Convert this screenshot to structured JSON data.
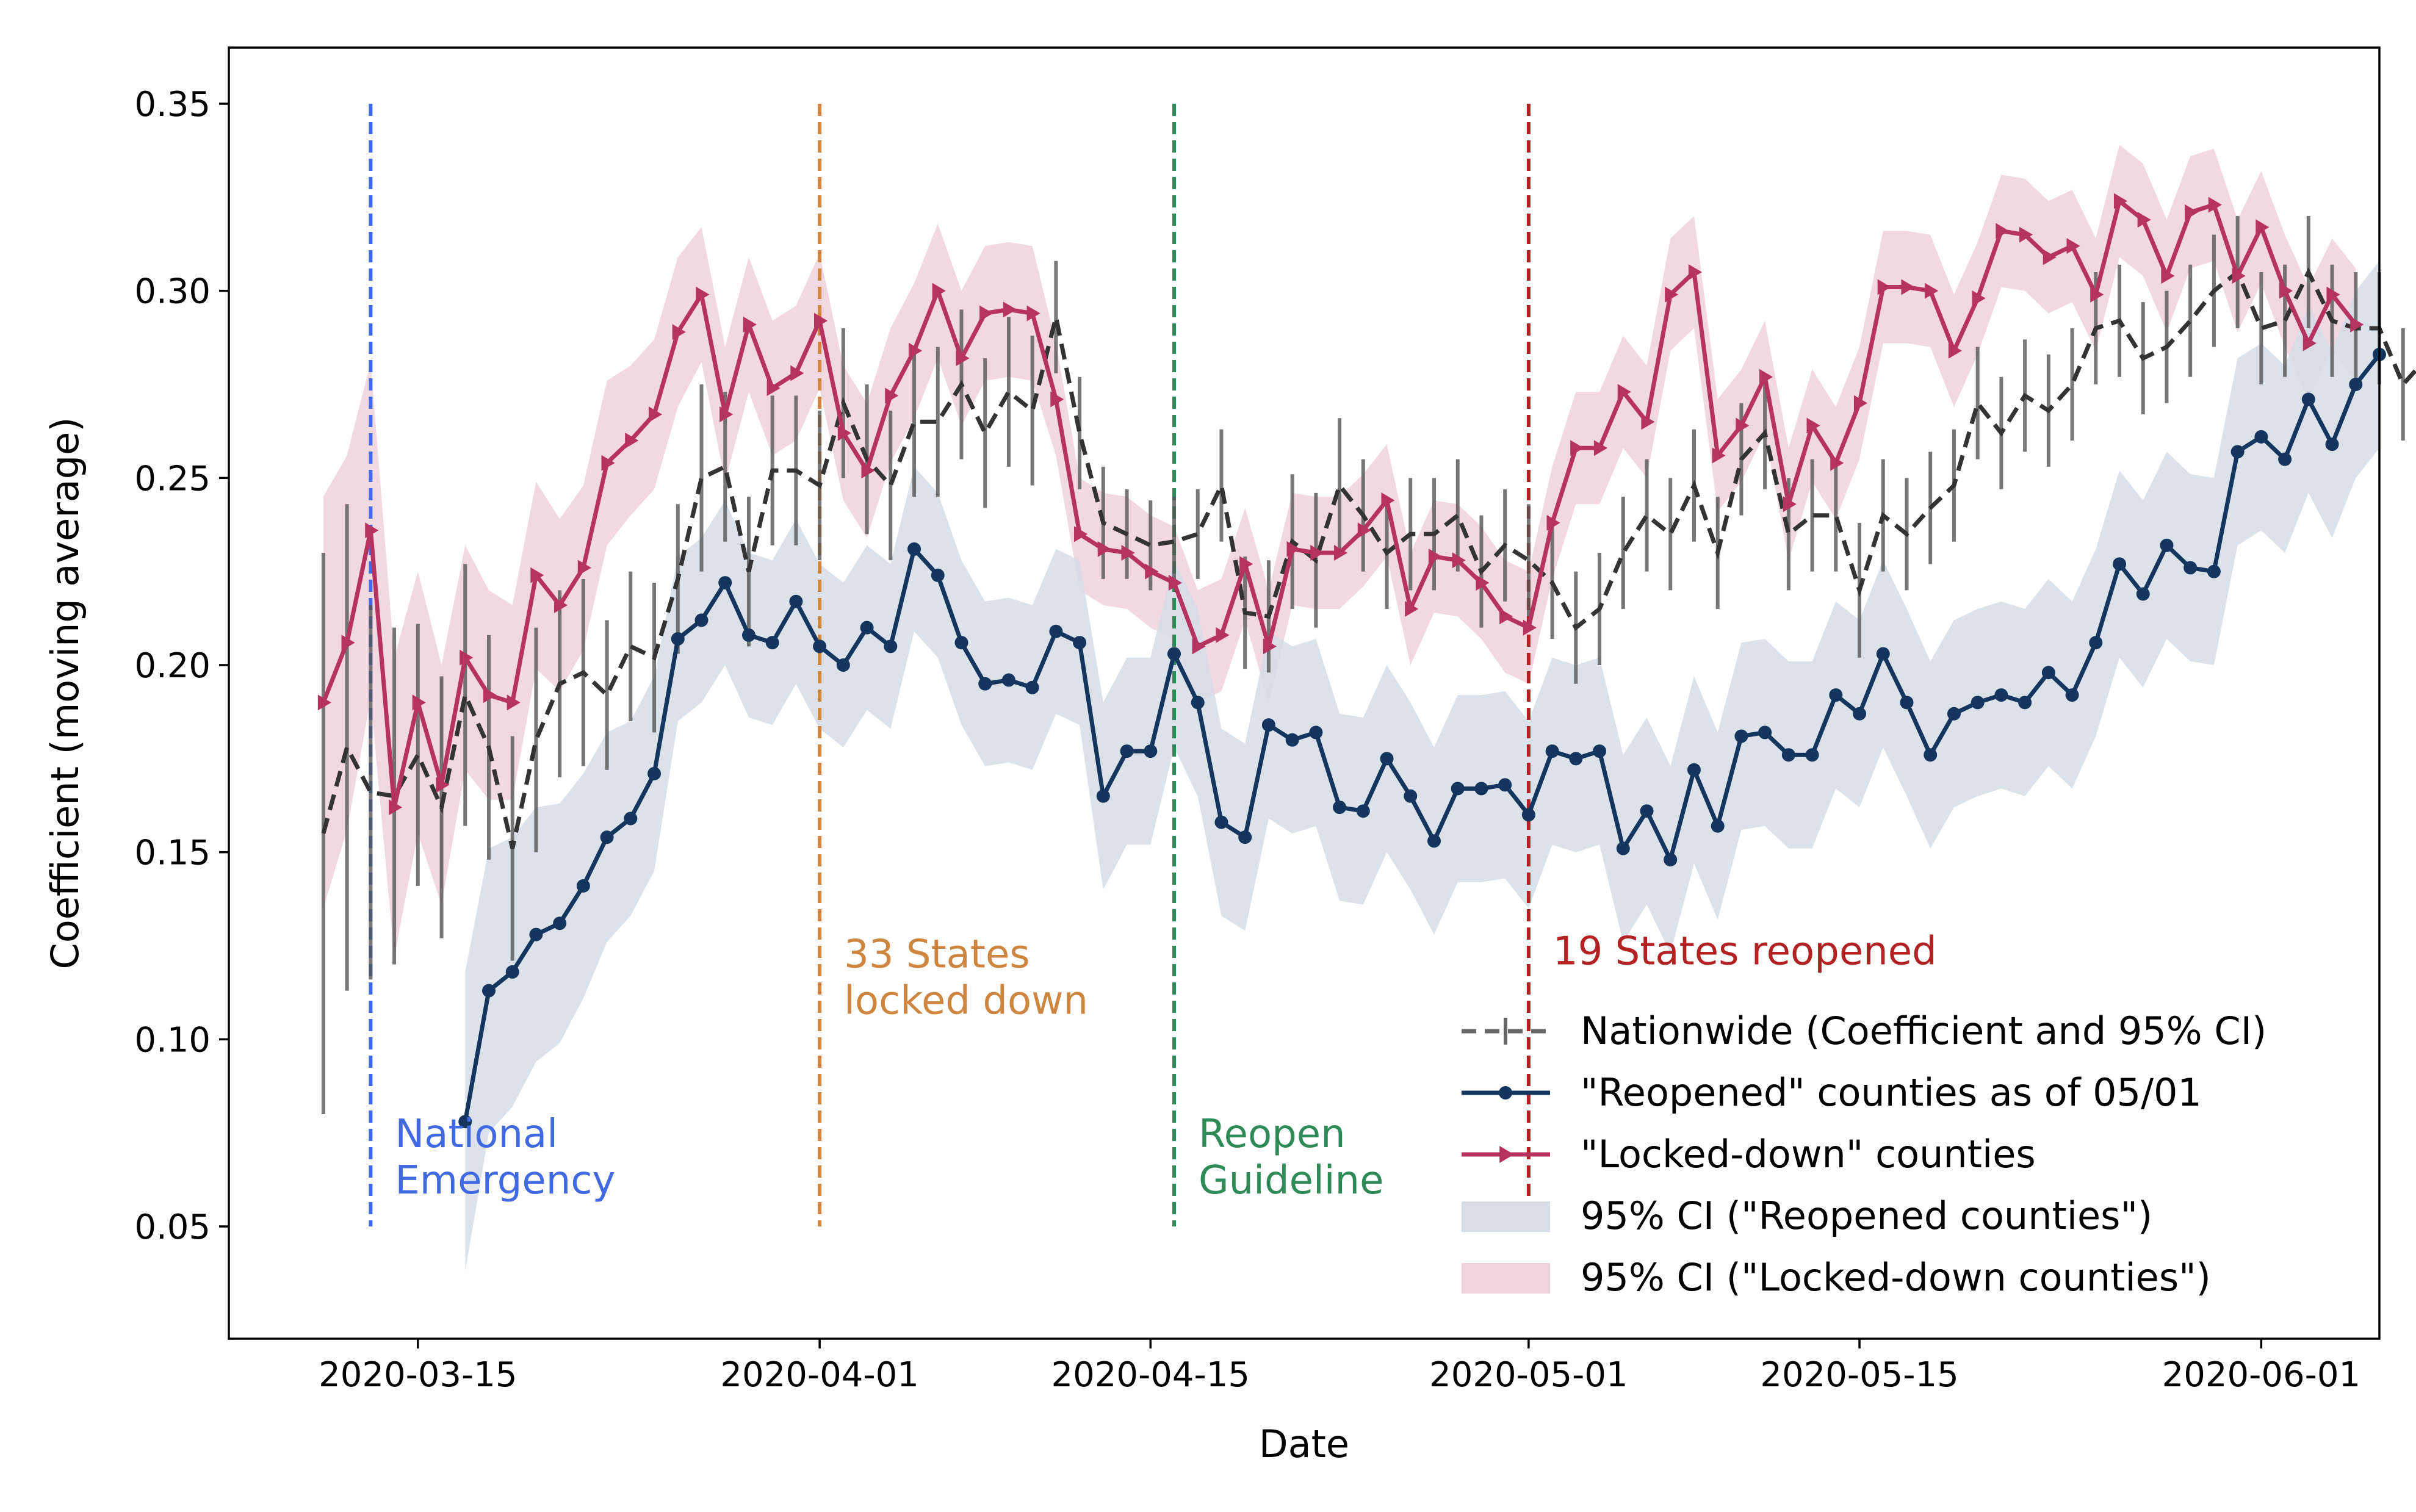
{
  "chart_data": {
    "type": "line",
    "xlabel": "Date",
    "ylabel": "Coefficient (moving average)",
    "ylim": [
      0.02,
      0.365
    ],
    "xlim": [
      "2020-03-07",
      "2020-06-06"
    ],
    "x_ticks": [
      "2020-03-15",
      "2020-04-01",
      "2020-04-15",
      "2020-05-01",
      "2020-05-15",
      "2020-06-01"
    ],
    "y_ticks": [
      "0.05",
      "0.10",
      "0.15",
      "0.20",
      "0.25",
      "0.30",
      "0.35"
    ],
    "y_tick_values": [
      0.05,
      0.1,
      0.15,
      0.2,
      0.25,
      0.3,
      0.35
    ],
    "events": [
      {
        "date": "2020-03-13",
        "label": [
          "National",
          "Emergency"
        ],
        "color": "#4169e1",
        "label_y": 0.065,
        "label_align": "right"
      },
      {
        "date": "2020-04-01",
        "label": [
          "33 States",
          "locked down"
        ],
        "color": "#cd853f",
        "label_y": 0.113,
        "label_align": "right"
      },
      {
        "date": "2020-04-16",
        "label": [
          "Reopen",
          "Guideline"
        ],
        "color": "#2e8b57",
        "label_y": 0.065,
        "label_align": "right"
      },
      {
        "date": "2020-05-01",
        "label": [
          "19 States reopened"
        ],
        "color": "#b22222",
        "label_y": 0.12,
        "label_align": "right"
      }
    ],
    "series": [
      {
        "name": "Nationwide (Coefficient and 95% CI)",
        "color": "#333333",
        "style": "dashed",
        "start_date": "2020-03-11",
        "values": [
          0.155,
          0.178,
          0.166,
          0.165,
          0.176,
          0.162,
          0.192,
          0.178,
          0.151,
          0.18,
          0.195,
          0.198,
          0.192,
          0.205,
          0.202,
          0.223,
          0.25,
          0.253,
          0.225,
          0.252,
          0.252,
          0.248,
          0.27,
          0.255,
          0.248,
          0.265,
          0.265,
          0.275,
          0.262,
          0.273,
          0.268,
          0.293,
          0.262,
          0.238,
          0.235,
          0.232,
          0.233,
          0.235,
          0.248,
          0.214,
          0.213,
          0.233,
          0.228,
          0.248,
          0.24,
          0.23,
          0.235,
          0.235,
          0.24,
          0.225,
          0.232,
          0.228,
          0.222,
          0.21,
          0.215,
          0.23,
          0.24,
          0.235,
          0.248,
          0.23,
          0.255,
          0.262,
          0.235,
          0.24,
          0.24,
          0.22,
          0.24,
          0.235,
          0.242,
          0.248,
          0.27,
          0.262,
          0.272,
          0.268,
          0.275,
          0.29,
          0.292,
          0.282,
          0.285,
          0.292,
          0.3,
          0.305,
          0.29,
          0.292,
          0.305,
          0.292,
          0.29,
          0.29,
          0.275,
          0.282,
          0.28
        ],
        "ci_halfwidth": [
          0.075,
          0.065,
          0.05,
          0.045,
          0.035,
          0.035,
          0.035,
          0.03,
          0.03,
          0.03,
          0.025,
          0.025,
          0.02,
          0.02,
          0.02,
          0.02,
          0.025,
          0.02,
          0.02,
          0.02,
          0.02,
          0.02,
          0.02,
          0.02,
          0.02,
          0.02,
          0.02,
          0.02,
          0.02,
          0.02,
          0.02,
          0.015,
          0.015,
          0.015,
          0.012,
          0.012,
          0.012,
          0.012,
          0.015,
          0.015,
          0.015,
          0.018,
          0.018,
          0.018,
          0.015,
          0.015,
          0.015,
          0.015,
          0.015,
          0.015,
          0.015,
          0.015,
          0.015,
          0.015,
          0.015,
          0.015,
          0.015,
          0.015,
          0.015,
          0.015,
          0.015,
          0.015,
          0.015,
          0.015,
          0.015,
          0.018,
          0.015,
          0.015,
          0.015,
          0.015,
          0.015,
          0.015,
          0.015,
          0.015,
          0.015,
          0.015,
          0.015,
          0.015,
          0.015,
          0.015,
          0.015,
          0.015,
          0.015,
          0.015,
          0.015,
          0.015,
          0.015,
          0.015,
          0.015,
          0.015,
          0.015
        ]
      },
      {
        "name": "\"Reopened\" counties as of 05/01",
        "color": "#14365e",
        "style": "solid-dots",
        "start_date": "2020-03-17",
        "values": [
          0.078,
          0.113,
          0.118,
          0.128,
          0.131,
          0.141,
          0.154,
          0.159,
          0.171,
          0.207,
          0.212,
          0.222,
          0.208,
          0.206,
          0.217,
          0.205,
          0.2,
          0.21,
          0.205,
          0.231,
          0.224,
          0.206,
          0.195,
          0.196,
          0.194,
          0.209,
          0.206,
          0.165,
          0.177,
          0.177,
          0.203,
          0.19,
          0.158,
          0.154,
          0.184,
          0.18,
          0.182,
          0.162,
          0.161,
          0.175,
          0.165,
          0.153,
          0.167,
          0.167,
          0.168,
          0.16,
          0.177,
          0.175,
          0.177,
          0.151,
          0.161,
          0.148,
          0.172,
          0.157,
          0.181,
          0.182,
          0.176,
          0.176,
          0.192,
          0.187,
          0.203,
          0.19,
          0.176,
          0.187,
          0.19,
          0.192,
          0.19,
          0.198,
          0.192,
          0.206,
          0.227,
          0.219,
          0.232,
          0.226,
          0.225,
          0.257,
          0.261,
          0.255,
          0.271,
          0.259,
          0.275,
          0.283
        ],
        "ci_halfwidth": [
          0.04,
          0.038,
          0.036,
          0.034,
          0.032,
          0.03,
          0.028,
          0.026,
          0.026,
          0.022,
          0.022,
          0.022,
          0.022,
          0.022,
          0.022,
          0.022,
          0.022,
          0.022,
          0.022,
          0.022,
          0.022,
          0.022,
          0.022,
          0.022,
          0.022,
          0.022,
          0.022,
          0.025,
          0.025,
          0.025,
          0.025,
          0.025,
          0.025,
          0.025,
          0.025,
          0.025,
          0.025,
          0.025,
          0.025,
          0.025,
          0.025,
          0.025,
          0.025,
          0.025,
          0.025,
          0.025,
          0.025,
          0.025,
          0.025,
          0.025,
          0.025,
          0.025,
          0.025,
          0.025,
          0.025,
          0.025,
          0.025,
          0.025,
          0.025,
          0.025,
          0.025,
          0.025,
          0.025,
          0.025,
          0.025,
          0.025,
          0.025,
          0.025,
          0.025,
          0.025,
          0.025,
          0.025,
          0.025,
          0.025,
          0.025,
          0.025,
          0.025,
          0.025,
          0.025,
          0.025,
          0.025,
          0.025
        ]
      },
      {
        "name": "\"Locked-down\" counties",
        "color": "#b5335e",
        "style": "solid-triangles",
        "start_date": "2020-03-11",
        "values": [
          0.19,
          0.206,
          0.236,
          0.162,
          0.19,
          0.168,
          0.202,
          0.192,
          0.19,
          0.224,
          0.216,
          0.226,
          0.254,
          0.26,
          0.267,
          0.289,
          0.299,
          0.267,
          0.291,
          0.274,
          0.278,
          0.292,
          0.262,
          0.252,
          0.272,
          0.284,
          0.3,
          0.282,
          0.294,
          0.295,
          0.294,
          0.271,
          0.235,
          0.231,
          0.23,
          0.225,
          0.222,
          0.205,
          0.208,
          0.227,
          0.205,
          0.231,
          0.23,
          0.23,
          0.236,
          0.244,
          0.215,
          0.229,
          0.228,
          0.222,
          0.213,
          0.21,
          0.238,
          0.258,
          0.258,
          0.273,
          0.265,
          0.299,
          0.305,
          0.256,
          0.264,
          0.277,
          0.243,
          0.264,
          0.254,
          0.27,
          0.301,
          0.301,
          0.3,
          0.284,
          0.298,
          0.316,
          0.315,
          0.309,
          0.312,
          0.299,
          0.324,
          0.319,
          0.304,
          0.321,
          0.323,
          0.304,
          0.317,
          0.3,
          0.286,
          0.299,
          0.291
        ],
        "ci_halfwidth": [
          0.055,
          0.05,
          0.045,
          0.04,
          0.035,
          0.032,
          0.03,
          0.028,
          0.026,
          0.025,
          0.023,
          0.022,
          0.022,
          0.02,
          0.02,
          0.02,
          0.018,
          0.018,
          0.018,
          0.018,
          0.018,
          0.018,
          0.018,
          0.018,
          0.018,
          0.018,
          0.018,
          0.018,
          0.018,
          0.018,
          0.018,
          0.015,
          0.015,
          0.015,
          0.015,
          0.015,
          0.015,
          0.015,
          0.015,
          0.015,
          0.015,
          0.015,
          0.015,
          0.015,
          0.015,
          0.015,
          0.015,
          0.015,
          0.015,
          0.015,
          0.015,
          0.015,
          0.015,
          0.015,
          0.015,
          0.015,
          0.015,
          0.015,
          0.015,
          0.015,
          0.015,
          0.015,
          0.015,
          0.015,
          0.015,
          0.015,
          0.015,
          0.015,
          0.015,
          0.015,
          0.015,
          0.015,
          0.015,
          0.015,
          0.015,
          0.015,
          0.015,
          0.015,
          0.015,
          0.015,
          0.015,
          0.015,
          0.015,
          0.015,
          0.015,
          0.015,
          0.015
        ]
      }
    ],
    "legend": {
      "placement": "lower-right",
      "entries": [
        {
          "label": "Nationwide (Coefficient and 95% CI)",
          "kind": "dashed",
          "color": "#666666"
        },
        {
          "label": "\"Reopened\" counties as of 05/01",
          "kind": "dots",
          "color": "#14365e"
        },
        {
          "label": "\"Locked-down\" counties",
          "kind": "triangles",
          "color": "#b5335e"
        },
        {
          "label": "95% CI (\"Reopened counties\")",
          "kind": "patch",
          "color": "#d6dde6"
        },
        {
          "label": "95% CI (\"Locked-down counties\")",
          "kind": "patch",
          "color": "#f0d2dc"
        }
      ]
    }
  }
}
